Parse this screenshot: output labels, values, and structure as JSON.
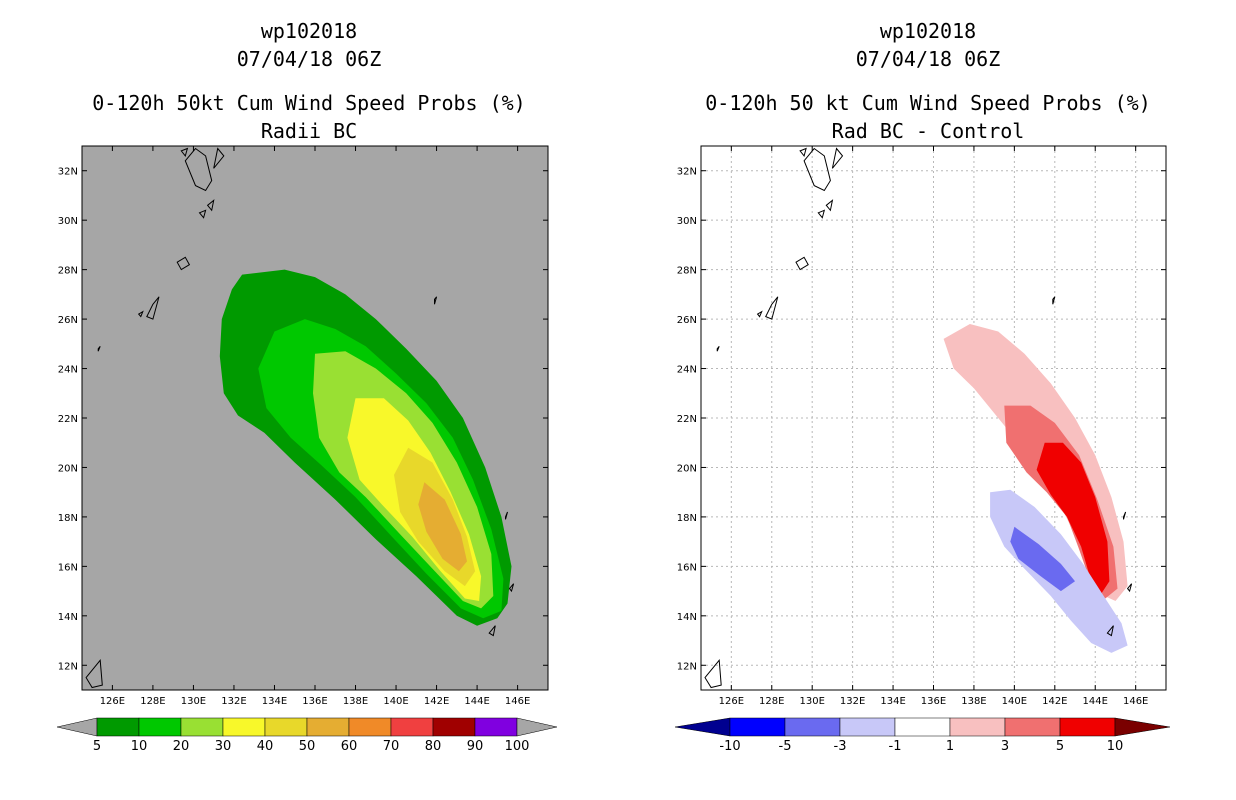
{
  "chart_data": [
    {
      "type": "contour",
      "title": [
        "wp102018",
        "07/04/18 06Z",
        "0-120h 50kt Cum Wind Speed Probs (%)",
        "Radii BC"
      ],
      "lon_range": [
        124.5,
        147.5
      ],
      "lat_range": [
        11,
        33
      ],
      "x_ticks": [
        "126E",
        "128E",
        "130E",
        "132E",
        "134E",
        "136E",
        "138E",
        "140E",
        "142E",
        "144E",
        "146E"
      ],
      "y_ticks": [
        "12N",
        "14N",
        "16N",
        "18N",
        "20N",
        "22N",
        "24N",
        "26N",
        "28N",
        "30N",
        "32N"
      ],
      "grid": false,
      "colorbar": {
        "labels": [
          "5",
          "10",
          "20",
          "30",
          "40",
          "50",
          "60",
          "70",
          "80",
          "90",
          "100"
        ],
        "colors": [
          "#009a00",
          "#00c800",
          "#99e033",
          "#f8f82a",
          "#e8d82a",
          "#e5ad32",
          "#f08a28",
          "#f04040",
          "#a00000",
          "#8000e0"
        ],
        "under_color": "#a6a6a6",
        "over_color": "#a6a6a6"
      },
      "contours": [
        {
          "level": 5,
          "color": "#009a00",
          "points": [
            [
              132.4,
              27.8
            ],
            [
              134.5,
              28.0
            ],
            [
              136.0,
              27.7
            ],
            [
              137.5,
              27.0
            ],
            [
              139.0,
              26.0
            ],
            [
              140.5,
              24.8
            ],
            [
              142.0,
              23.5
            ],
            [
              143.3,
              22.0
            ],
            [
              144.4,
              20.0
            ],
            [
              145.2,
              18.0
            ],
            [
              145.7,
              16.0
            ],
            [
              145.5,
              14.5
            ],
            [
              145.0,
              13.9
            ],
            [
              144.0,
              13.6
            ],
            [
              143.0,
              14.0
            ],
            [
              141.0,
              15.6
            ],
            [
              139.0,
              17.1
            ],
            [
              137.0,
              18.7
            ],
            [
              135.0,
              20.2
            ],
            [
              133.5,
              21.4
            ],
            [
              132.2,
              22.1
            ],
            [
              131.5,
              23.0
            ],
            [
              131.3,
              24.5
            ],
            [
              131.4,
              26.0
            ],
            [
              131.9,
              27.2
            ]
          ]
        },
        {
          "level": 10,
          "color": "#00c800",
          "points": [
            [
              134.0,
              25.5
            ],
            [
              135.5,
              26.0
            ],
            [
              137.0,
              25.6
            ],
            [
              138.5,
              24.9
            ],
            [
              140.0,
              23.8
            ],
            [
              141.5,
              22.6
            ],
            [
              142.8,
              21.2
            ],
            [
              143.8,
              19.5
            ],
            [
              144.7,
              17.5
            ],
            [
              145.3,
              15.5
            ],
            [
              145.2,
              14.2
            ],
            [
              144.3,
              13.9
            ],
            [
              143.2,
              14.3
            ],
            [
              141.5,
              15.7
            ],
            [
              139.8,
              17.2
            ],
            [
              138.0,
              18.8
            ],
            [
              136.3,
              20.1
            ],
            [
              134.8,
              21.2
            ],
            [
              133.6,
              22.4
            ],
            [
              133.2,
              24.0
            ]
          ]
        },
        {
          "level": 20,
          "color": "#99e033",
          "points": [
            [
              136.0,
              24.6
            ],
            [
              137.5,
              24.7
            ],
            [
              139.0,
              24.0
            ],
            [
              140.5,
              23.0
            ],
            [
              141.8,
              21.8
            ],
            [
              143.0,
              20.2
            ],
            [
              144.0,
              18.4
            ],
            [
              144.7,
              16.5
            ],
            [
              144.8,
              14.8
            ],
            [
              144.2,
              14.3
            ],
            [
              143.3,
              14.6
            ],
            [
              141.8,
              15.9
            ],
            [
              140.2,
              17.3
            ],
            [
              138.5,
              18.8
            ],
            [
              137.2,
              19.8
            ],
            [
              136.2,
              21.2
            ],
            [
              135.9,
              23.0
            ]
          ]
        },
        {
          "level": 30,
          "color": "#f8f82a",
          "points": [
            [
              138.0,
              22.8
            ],
            [
              139.4,
              22.8
            ],
            [
              140.6,
              21.9
            ],
            [
              141.7,
              20.6
            ],
            [
              142.7,
              19.0
            ],
            [
              143.6,
              17.3
            ],
            [
              144.2,
              15.6
            ],
            [
              144.1,
              14.6
            ],
            [
              143.4,
              14.7
            ],
            [
              142.2,
              15.8
            ],
            [
              140.8,
              17.2
            ],
            [
              139.3,
              18.5
            ],
            [
              138.2,
              19.5
            ],
            [
              137.6,
              21.2
            ]
          ]
        },
        {
          "level": 40,
          "color": "#e8d82a",
          "points": [
            [
              140.6,
              20.8
            ],
            [
              141.8,
              20.2
            ],
            [
              142.8,
              18.7
            ],
            [
              143.5,
              17.2
            ],
            [
              143.9,
              15.8
            ],
            [
              143.4,
              15.2
            ],
            [
              142.4,
              15.8
            ],
            [
              141.1,
              17.0
            ],
            [
              140.2,
              18.2
            ],
            [
              139.9,
              19.7
            ]
          ]
        },
        {
          "level": 50,
          "color": "#e5ad32",
          "points": [
            [
              141.4,
              19.4
            ],
            [
              142.4,
              18.7
            ],
            [
              143.2,
              17.3
            ],
            [
              143.5,
              16.2
            ],
            [
              143.1,
              15.8
            ],
            [
              142.3,
              16.3
            ],
            [
              141.5,
              17.4
            ],
            [
              141.1,
              18.5
            ]
          ]
        }
      ]
    },
    {
      "type": "contour",
      "title": [
        "wp102018",
        "07/04/18 06Z",
        "0-120h 50 kt Cum Wind Speed Probs (%)",
        "Rad BC - Control"
      ],
      "lon_range": [
        124.5,
        147.5
      ],
      "lat_range": [
        11,
        33
      ],
      "x_ticks": [
        "126E",
        "128E",
        "130E",
        "132E",
        "134E",
        "136E",
        "138E",
        "140E",
        "142E",
        "144E",
        "146E"
      ],
      "y_ticks": [
        "12N",
        "14N",
        "16N",
        "18N",
        "20N",
        "22N",
        "24N",
        "26N",
        "28N",
        "30N",
        "32N"
      ],
      "grid": true,
      "colorbar": {
        "labels": [
          "-10",
          "-5",
          "-3",
          "-1",
          "1",
          "3",
          "5",
          "10"
        ],
        "colors": [
          "#0000ff",
          "#6a6af0",
          "#c8c8f8",
          "#ffffff",
          "#f8c0c0",
          "#f07070",
          "#f00000"
        ],
        "under_color": "#000090",
        "over_color": "#7a0000"
      },
      "contours": [
        {
          "level": 1,
          "color": "#f8c0c0",
          "points": [
            [
              136.5,
              25.2
            ],
            [
              137.8,
              25.8
            ],
            [
              139.2,
              25.5
            ],
            [
              140.5,
              24.6
            ],
            [
              141.8,
              23.4
            ],
            [
              143.0,
              22.0
            ],
            [
              144.0,
              20.5
            ],
            [
              144.8,
              18.8
            ],
            [
              145.4,
              17.0
            ],
            [
              145.6,
              15.2
            ],
            [
              145.0,
              14.6
            ],
            [
              144.2,
              14.9
            ],
            [
              143.5,
              16.0
            ],
            [
              142.8,
              17.6
            ],
            [
              142.0,
              18.9
            ],
            [
              141.0,
              19.9
            ],
            [
              140.2,
              21.0
            ],
            [
              139.0,
              22.2
            ],
            [
              138.0,
              23.2
            ],
            [
              137.0,
              24.0
            ]
          ]
        },
        {
          "level": 3,
          "color": "#f07070",
          "points": [
            [
              139.5,
              22.5
            ],
            [
              140.8,
              22.5
            ],
            [
              142.0,
              21.8
            ],
            [
              143.2,
              20.5
            ],
            [
              144.1,
              18.7
            ],
            [
              144.9,
              16.8
            ],
            [
              145.1,
              15.1
            ],
            [
              144.5,
              14.7
            ],
            [
              143.8,
              15.3
            ],
            [
              143.2,
              16.7
            ],
            [
              142.6,
              18.0
            ],
            [
              141.6,
              19.0
            ],
            [
              140.6,
              19.8
            ],
            [
              139.6,
              21.0
            ]
          ]
        },
        {
          "level": 5,
          "color": "#f00000",
          "points": [
            [
              141.5,
              21.0
            ],
            [
              142.4,
              21.0
            ],
            [
              143.3,
              20.2
            ],
            [
              144.0,
              18.8
            ],
            [
              144.6,
              17.0
            ],
            [
              144.7,
              15.4
            ],
            [
              144.3,
              14.9
            ],
            [
              143.8,
              15.4
            ],
            [
              143.3,
              16.8
            ],
            [
              142.6,
              18.0
            ],
            [
              141.8,
              18.9
            ],
            [
              141.1,
              19.9
            ]
          ]
        },
        {
          "level": -1,
          "color": "#c8c8f8",
          "points": [
            [
              138.8,
              19.0
            ],
            [
              139.8,
              19.1
            ],
            [
              141.0,
              18.4
            ],
            [
              142.3,
              17.3
            ],
            [
              143.4,
              16.1
            ],
            [
              144.5,
              14.7
            ],
            [
              145.3,
              13.7
            ],
            [
              145.6,
              12.8
            ],
            [
              144.8,
              12.5
            ],
            [
              143.8,
              12.9
            ],
            [
              142.8,
              13.8
            ],
            [
              141.8,
              14.8
            ],
            [
              140.5,
              15.9
            ],
            [
              139.5,
              16.8
            ],
            [
              138.8,
              18.0
            ]
          ]
        },
        {
          "level": -3,
          "color": "#6a6af0",
          "points": [
            [
              140.0,
              17.6
            ],
            [
              141.2,
              16.9
            ],
            [
              142.3,
              16.1
            ],
            [
              143.0,
              15.4
            ],
            [
              142.3,
              15.0
            ],
            [
              141.3,
              15.6
            ],
            [
              140.2,
              16.3
            ],
            [
              139.8,
              17.0
            ]
          ]
        }
      ]
    }
  ]
}
